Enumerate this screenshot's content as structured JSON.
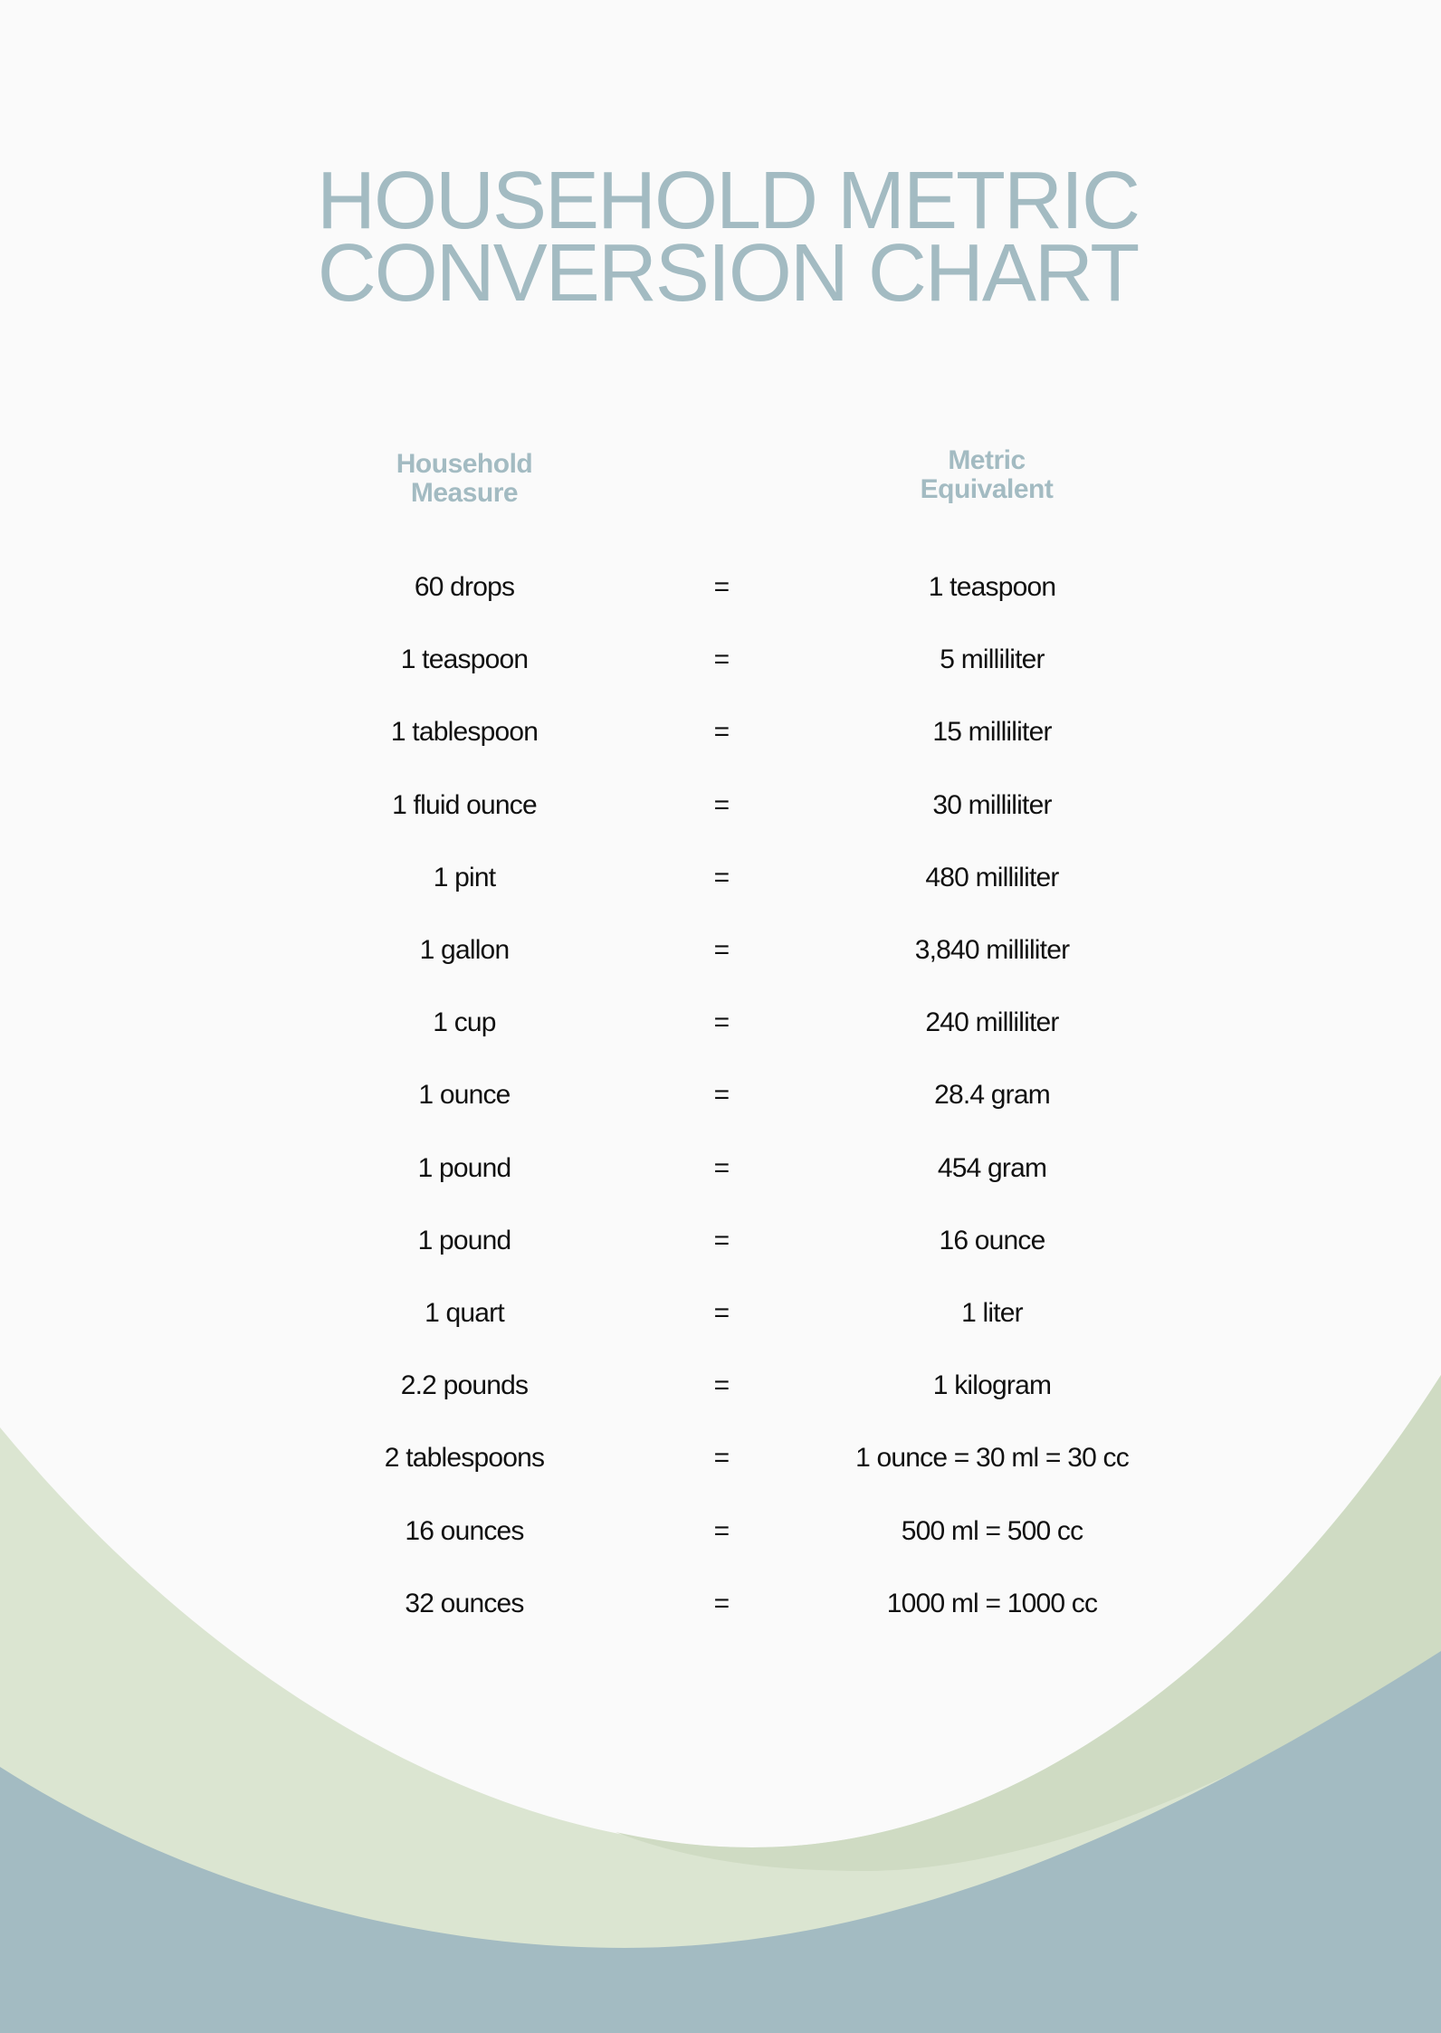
{
  "title": {
    "line1": "HOUSEHOLD METRIC",
    "line2": "CONVERSION CHART"
  },
  "headers": {
    "household": {
      "line1": "Household",
      "line2": "Measure"
    },
    "metric": {
      "line1": "Metric",
      "line2": "Equivalent"
    }
  },
  "rows": [
    {
      "household": "60 drops",
      "sep": "=",
      "metric": "1 teaspoon"
    },
    {
      "household": "1 teaspoon",
      "sep": "=",
      "metric": "5 milliliter"
    },
    {
      "household": "1 tablespoon",
      "sep": "=",
      "metric": "15 milliliter"
    },
    {
      "household": "1 fluid ounce",
      "sep": "=",
      "metric": "30 milliliter"
    },
    {
      "household": "1 pint",
      "sep": "=",
      "metric": "480 milliliter"
    },
    {
      "household": "1 gallon",
      "sep": "=",
      "metric": "3,840 milliliter"
    },
    {
      "household": "1 cup",
      "sep": "=",
      "metric": "240 milliliter"
    },
    {
      "household": "1 ounce",
      "sep": "=",
      "metric": "28.4 gram"
    },
    {
      "household": "1 pound",
      "sep": "=",
      "metric": "454 gram"
    },
    {
      "household": "1 pound",
      "sep": "=",
      "metric": "16 ounce"
    },
    {
      "household": "1 quart",
      "sep": "=",
      "metric": "1 liter"
    },
    {
      "household": "2.2 pounds",
      "sep": "=",
      "metric": "1 kilogram"
    },
    {
      "household": "2 tablespoons",
      "sep": "=",
      "metric": "1 ounce = 30 ml = 30 cc"
    },
    {
      "household": "16 ounces",
      "sep": "=",
      "metric": "500 ml = 500 cc"
    },
    {
      "household": "32 ounces",
      "sep": "=",
      "metric": "1000 ml = 1000 cc"
    }
  ],
  "colors": {
    "background": "#fafafa",
    "accent_blue": "#a3bbc2",
    "light_green": "#dbe5d1",
    "dark_green": "#cfdbc3",
    "text": "#111111"
  }
}
